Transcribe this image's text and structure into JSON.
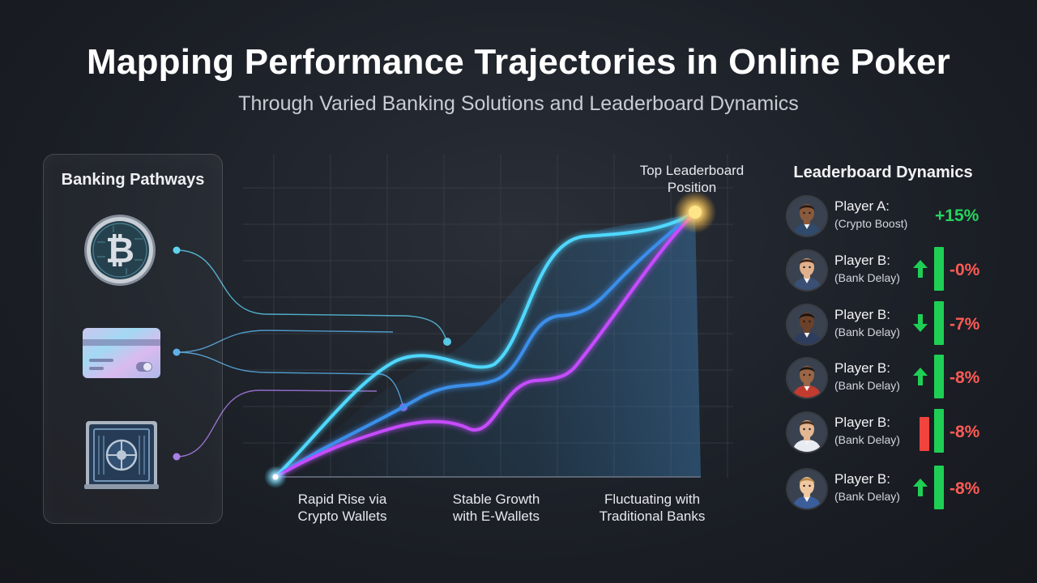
{
  "header": {
    "title": "Mapping Performance Trajectories in Online Poker",
    "subtitle": "Through Varied Banking Solutions and Leaderboard Dynamics"
  },
  "banking": {
    "title": "Banking Pathways",
    "methods": [
      {
        "name": "crypto",
        "icon": "bitcoin-icon"
      },
      {
        "name": "e-wallet",
        "icon": "card-icon"
      },
      {
        "name": "bank",
        "icon": "bank-vault-icon"
      }
    ]
  },
  "chart": {
    "peak_label": "Top Leaderboard Position",
    "paths": [
      {
        "label": "Rapid Rise via Crypto Wallets",
        "color": "#4fd8ff"
      },
      {
        "label": "Stable Growth with E-Wallets",
        "color": "#3b8fea"
      },
      {
        "label": "Fluctuating with Traditional Banks",
        "color": "#c64bff"
      }
    ]
  },
  "leaderboard": {
    "title": "Leaderboard Dynamics",
    "players": [
      {
        "name": "Player A:",
        "tag": "(Crypto Boost)",
        "change": "+15%",
        "trend": "none",
        "bar": "none",
        "skin": "#8a5a3c",
        "hair": "#2a1a10",
        "shirt": "#2f4a6a"
      },
      {
        "name": "Player B:",
        "tag": "(Bank Delay)",
        "change": "-0%",
        "trend": "up",
        "bar": "green",
        "skin": "#e1b08c",
        "hair": "#3b2517",
        "shirt": "#3a4f73"
      },
      {
        "name": "Player B:",
        "tag": "(Bank Delay)",
        "change": "-7%",
        "trend": "down",
        "bar": "green",
        "skin": "#6b4129",
        "hair": "#1c120b",
        "shirt": "#2e3d5e"
      },
      {
        "name": "Player B:",
        "tag": "(Bank Delay)",
        "change": "-8%",
        "trend": "up",
        "bar": "green",
        "skin": "#9b6646",
        "hair": "#1d1410",
        "shirt": "#c23b2f"
      },
      {
        "name": "Player B:",
        "tag": "(Bank Delay)",
        "change": "-8%",
        "trend": "red-bar",
        "bar": "green",
        "skin": "#e3b792",
        "hair": "#4a2d1a",
        "shirt": "#e8ecf2"
      },
      {
        "name": "Player B:",
        "tag": "(Bank Delay)",
        "change": "-8%",
        "trend": "up",
        "bar": "green",
        "skin": "#efc7a0",
        "hair": "#b88a4a",
        "shirt": "#3b5e9a"
      }
    ]
  },
  "colors": {
    "positive": "#27d35f",
    "negative": "#ff5b55",
    "bar_green": "#1fcf55",
    "bar_red": "#f0443c"
  }
}
